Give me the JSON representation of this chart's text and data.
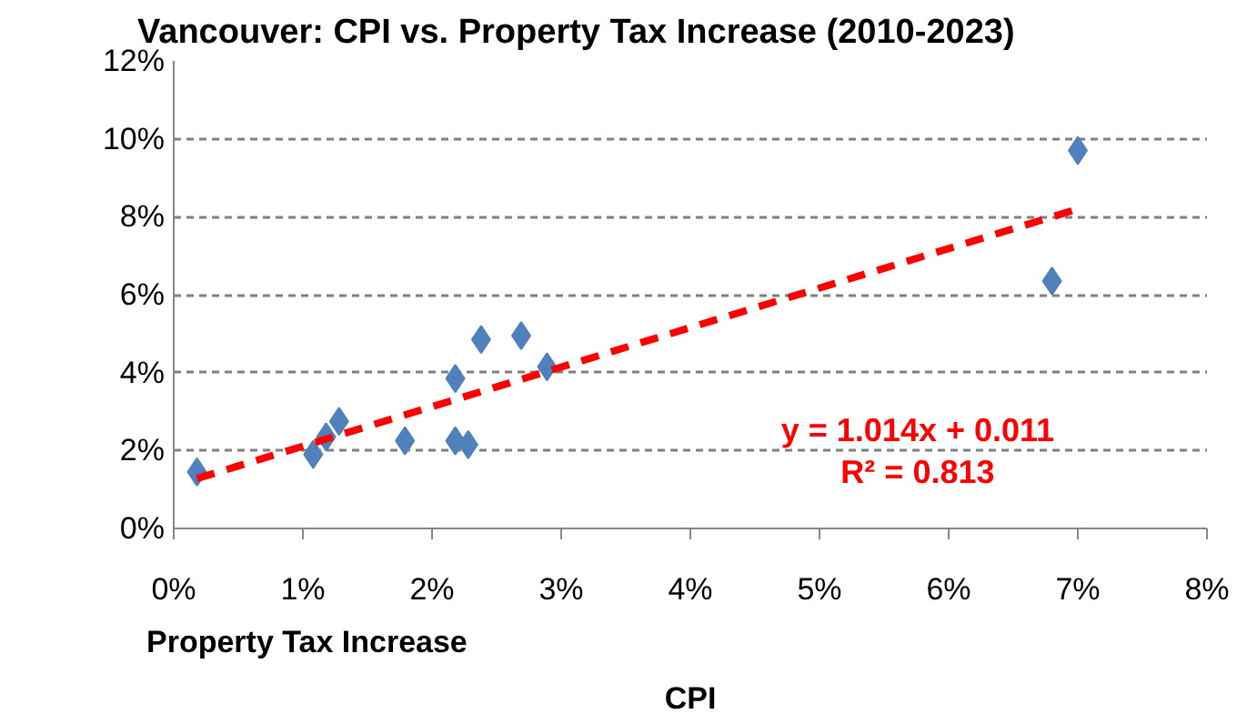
{
  "chart_data": {
    "type": "scatter",
    "title": "Vancouver: CPI vs. Property Tax Increase (2010-2023)",
    "xlabel": "CPI",
    "series": [
      {
        "type": "scatter",
        "color": "#4f81bd",
        "marker": "diamond",
        "x": [
          0.18,
          1.08,
          1.18,
          1.28,
          1.79,
          2.18,
          2.18,
          2.28,
          2.38,
          2.69,
          2.89,
          6.8,
          7.0
        ],
        "values": [
          1.45,
          1.9,
          2.35,
          2.75,
          2.25,
          3.85,
          2.25,
          2.15,
          4.85,
          4.95,
          4.15,
          6.35,
          9.7
        ]
      },
      {
        "type": "line",
        "color": "#ff0000",
        "line_style": "dashed",
        "x": [
          0.18,
          7.0
        ],
        "values": [
          1.28,
          8.2
        ]
      }
    ],
    "annotations": [
      "y = 1.014x + 0.011",
      "R² = 0.813",
      "Property Tax Increase"
    ],
    "xlim": [
      0,
      8
    ],
    "ylim": [
      0,
      12
    ],
    "xticks": [
      {
        "value": 0,
        "label": "0%"
      },
      {
        "value": 1,
        "label": "1%"
      },
      {
        "value": 2,
        "label": "2%"
      },
      {
        "value": 3,
        "label": "3%"
      },
      {
        "value": 4,
        "label": "4%"
      },
      {
        "value": 5,
        "label": "5%"
      },
      {
        "value": 6,
        "label": "6%"
      },
      {
        "value": 7,
        "label": "7%"
      },
      {
        "value": 8,
        "label": "8%"
      }
    ],
    "yticks": [
      {
        "value": 0,
        "label": "0%"
      },
      {
        "value": 2,
        "label": "2%"
      },
      {
        "value": 4,
        "label": "4%"
      },
      {
        "value": 6,
        "label": "6%"
      },
      {
        "value": 8,
        "label": "8%"
      },
      {
        "value": 10,
        "label": "10%"
      },
      {
        "value": 12,
        "label": "12%"
      }
    ],
    "grid": "y"
  }
}
